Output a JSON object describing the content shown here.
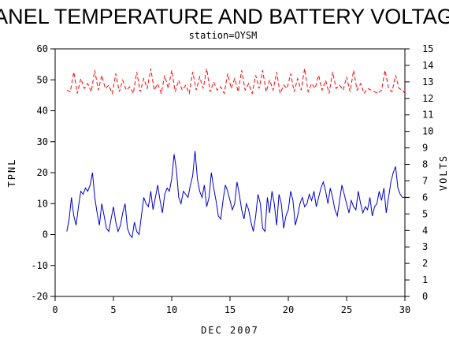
{
  "chart_data": {
    "type": "line",
    "title": "PANEL TEMPERATURE AND BATTERY VOLTAGE",
    "subtitle": "station=OYSM",
    "xlabel": "DEC 2007",
    "ylabel_left": "TPNL",
    "ylabel_right": "VOLTS",
    "xlim": [
      0,
      30
    ],
    "ylim_left": [
      -20,
      60
    ],
    "ylim_right": [
      0,
      15
    ],
    "xticks": [
      0,
      5,
      10,
      15,
      20,
      25,
      30
    ],
    "yticks_left": [
      -20,
      -10,
      0,
      10,
      20,
      30,
      40,
      50,
      60
    ],
    "yticks_right": [
      0,
      1,
      2,
      3,
      4,
      5,
      6,
      7,
      8,
      9,
      10,
      11,
      12,
      13,
      14,
      15
    ],
    "grid": false,
    "series": [
      {
        "axis": "left",
        "color": "#0000cc",
        "x": [
          1.0,
          1.2,
          1.4,
          1.6,
          1.8,
          2.0,
          2.2,
          2.4,
          2.6,
          2.8,
          3.0,
          3.2,
          3.4,
          3.6,
          3.8,
          4.0,
          4.2,
          4.4,
          4.6,
          4.8,
          5.0,
          5.2,
          5.4,
          5.6,
          5.8,
          6.0,
          6.2,
          6.4,
          6.6,
          6.8,
          7.0,
          7.2,
          7.4,
          7.6,
          7.8,
          8.0,
          8.2,
          8.4,
          8.6,
          8.8,
          9.0,
          9.2,
          9.4,
          9.6,
          9.8,
          10.0,
          10.2,
          10.4,
          10.6,
          10.8,
          11.0,
          11.2,
          11.4,
          11.6,
          11.8,
          12.0,
          12.2,
          12.4,
          12.6,
          12.8,
          13.0,
          13.2,
          13.4,
          13.6,
          13.8,
          14.0,
          14.2,
          14.4,
          14.6,
          14.8,
          15.0,
          15.2,
          15.4,
          15.6,
          15.8,
          16.0,
          16.2,
          16.4,
          16.6,
          16.8,
          17.0,
          17.2,
          17.4,
          17.6,
          17.8,
          18.0,
          18.2,
          18.4,
          18.6,
          18.8,
          19.0,
          19.2,
          19.4,
          19.6,
          19.8,
          20.0,
          20.2,
          20.4,
          20.6,
          20.8,
          21.0,
          21.2,
          21.4,
          21.6,
          21.8,
          22.0,
          22.2,
          22.4,
          22.6,
          22.8,
          23.0,
          23.2,
          23.4,
          23.6,
          23.8,
          24.0,
          24.2,
          24.4,
          24.6,
          24.8,
          25.0,
          25.2,
          25.4,
          25.6,
          25.8,
          26.0,
          26.2,
          26.4,
          26.6,
          26.8,
          27.0,
          27.2,
          27.4,
          27.6,
          27.8,
          28.0,
          28.2,
          28.4,
          28.6,
          28.8,
          29.0,
          29.2,
          29.4,
          29.6,
          29.8,
          30.0
        ],
        "y": [
          1,
          5,
          12,
          6,
          3,
          9,
          14,
          13,
          15,
          14,
          16,
          20,
          12,
          7,
          3,
          10,
          6,
          2,
          1,
          5,
          9,
          4,
          1,
          3,
          7,
          10,
          2,
          0,
          -1,
          4,
          1,
          0,
          6,
          12,
          10,
          9,
          14,
          8,
          12,
          16,
          11,
          7,
          13,
          15,
          14,
          18,
          26,
          21,
          12,
          10,
          14,
          13,
          12,
          16,
          19,
          27,
          18,
          14,
          12,
          16,
          9,
          12,
          20,
          15,
          11,
          6,
          5,
          11,
          16,
          14,
          11,
          8,
          10,
          17,
          13,
          8,
          5,
          10,
          8,
          4,
          1,
          6,
          13,
          10,
          2,
          1,
          12,
          7,
          14,
          10,
          3,
          13,
          10,
          2,
          6,
          8,
          14,
          11,
          3,
          6,
          10,
          12,
          9,
          10,
          13,
          11,
          14,
          9,
          12,
          15,
          17,
          14,
          10,
          15,
          12,
          8,
          6,
          11,
          16,
          13,
          10,
          7,
          11,
          9,
          8,
          14,
          10,
          7,
          9,
          8,
          12,
          6,
          9,
          10,
          14,
          11,
          15,
          7,
          12,
          17,
          20,
          22,
          15,
          13,
          12,
          12
        ]
      },
      {
        "axis": "right",
        "color": "#ff0000",
        "style": "dashed",
        "x": [
          1.0,
          1.3,
          1.6,
          1.9,
          2.2,
          2.5,
          2.8,
          3.1,
          3.4,
          3.7,
          4.0,
          4.3,
          4.6,
          4.9,
          5.2,
          5.5,
          5.8,
          6.1,
          6.4,
          6.7,
          7.0,
          7.3,
          7.6,
          7.9,
          8.2,
          8.5,
          8.8,
          9.1,
          9.4,
          9.7,
          10.0,
          10.3,
          10.6,
          10.9,
          11.2,
          11.5,
          11.8,
          12.1,
          12.4,
          12.7,
          13.0,
          13.3,
          13.6,
          13.9,
          14.2,
          14.5,
          14.8,
          15.1,
          15.4,
          15.7,
          16.0,
          16.3,
          16.6,
          16.9,
          17.2,
          17.5,
          17.8,
          18.1,
          18.4,
          18.7,
          19.0,
          19.3,
          19.6,
          19.9,
          20.2,
          20.5,
          20.8,
          21.1,
          21.4,
          21.7,
          22.0,
          22.3,
          22.6,
          22.9,
          23.2,
          23.5,
          23.8,
          24.1,
          24.4,
          24.7,
          25.0,
          25.3,
          25.6,
          25.9,
          26.2,
          26.5,
          26.8,
          27.1,
          27.4,
          27.7,
          28.0,
          28.3,
          28.6,
          28.9,
          29.2,
          29.5,
          29.8,
          30.0
        ],
        "y": [
          12.5,
          12.4,
          13.6,
          12.3,
          13.2,
          12.6,
          12.9,
          12.4,
          13.7,
          12.5,
          13.4,
          12.6,
          12.8,
          12.3,
          13.5,
          12.4,
          13.1,
          12.5,
          12.7,
          12.3,
          13.6,
          12.4,
          13.2,
          12.6,
          13.8,
          12.5,
          12.9,
          12.3,
          13.4,
          12.6,
          13.7,
          12.4,
          13.1,
          12.5,
          12.8,
          12.3,
          13.6,
          12.5,
          13.3,
          12.6,
          13.8,
          12.4,
          13.0,
          12.5,
          12.7,
          12.3,
          13.5,
          12.6,
          13.2,
          12.4,
          13.7,
          12.5,
          12.9,
          12.3,
          13.4,
          12.6,
          13.7,
          12.4,
          13.1,
          12.5,
          13.6,
          12.3,
          12.8,
          12.6,
          13.5,
          12.4,
          13.2,
          12.5,
          13.8,
          12.4,
          12.9,
          12.6,
          13.4,
          12.5,
          13.1,
          12.3,
          13.6,
          12.6,
          12.8,
          12.5,
          13.3,
          12.4,
          13.7,
          12.5,
          12.9,
          12.3,
          12.6,
          12.5,
          12.4,
          12.3,
          12.5,
          13.7,
          12.6,
          12.4,
          13.4,
          12.6,
          12.5,
          12.3
        ]
      }
    ]
  }
}
